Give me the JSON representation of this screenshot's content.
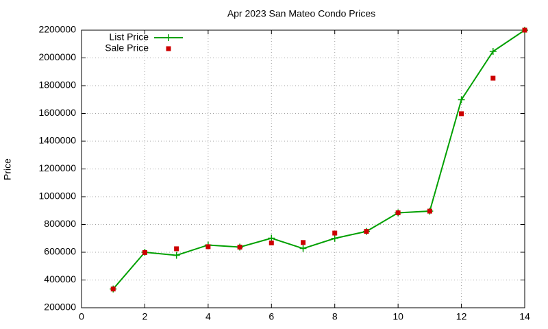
{
  "chart_data": {
    "type": "line",
    "title": "Apr 2023 San Mateo Condo Prices",
    "y_label": "Price",
    "x": [
      1,
      2,
      3,
      4,
      5,
      6,
      7,
      8,
      9,
      10,
      11,
      12,
      13,
      14
    ],
    "series": [
      {
        "name": "List Price",
        "color": "#00a000",
        "mode": "lines+markers",
        "values": [
          335000,
          600000,
          578000,
          652000,
          637000,
          701000,
          627000,
          700000,
          750000,
          884000,
          896000,
          1699000,
          2047000,
          2200000
        ]
      },
      {
        "name": "Sale Price",
        "color": "#cc0000",
        "mode": "markers",
        "values": [
          335000,
          598000,
          625000,
          640000,
          637000,
          667000,
          670000,
          738000,
          750000,
          884000,
          896000,
          1598000,
          1854000,
          2200000
        ]
      }
    ],
    "xlim": [
      0,
      14
    ],
    "xticks": [
      0,
      2,
      4,
      6,
      8,
      10,
      12,
      14
    ],
    "ylim": [
      200000,
      2200000
    ],
    "yticks": [
      200000,
      400000,
      600000,
      800000,
      1000000,
      1200000,
      1400000,
      1600000,
      1800000,
      2000000,
      2200000
    ],
    "grid": true,
    "legend": "top-left"
  }
}
